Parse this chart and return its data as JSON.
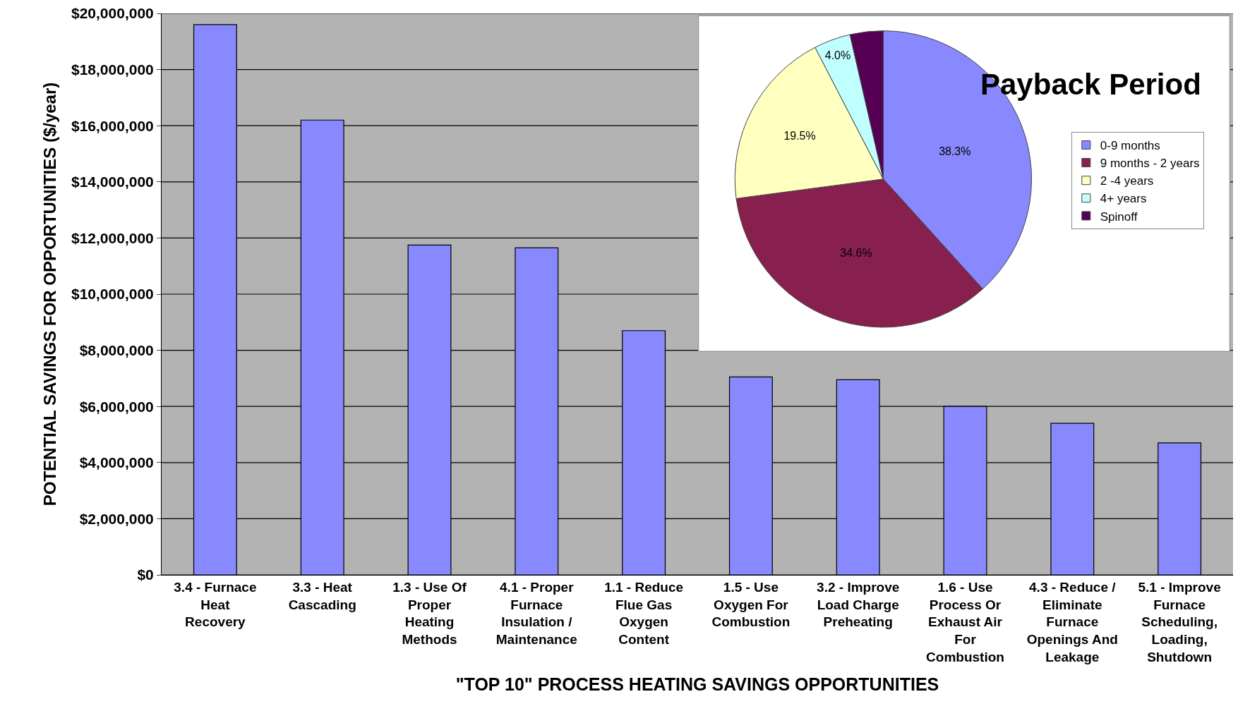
{
  "chart_data": [
    {
      "type": "bar",
      "xlabel": "\"TOP 10\" PROCESS HEATING SAVINGS OPPORTUNITIES",
      "ylabel": "POTENTIAL SAVINGS FOR OPPORTUNITIES ($/year)",
      "categories": [
        "3.4 - Furnace\nHeat\nRecovery",
        "3.3 - Heat\nCascading",
        "1.3 - Use Of\nProper\nHeating\nMethods",
        "4.1 - Proper\nFurnace\nInsulation /\nMaintenance",
        "1.1 - Reduce\nFlue Gas\nOxygen\nContent",
        "1.5 - Use\nOxygen For\nCombustion",
        "3.2 - Improve\nLoad Charge\nPreheating",
        "1.6 - Use\nProcess Or\nExhaust Air\nFor\nCombustion",
        "4.3 - Reduce /\nEliminate\nFurnace\nOpenings And\nLeakage",
        "5.1 - Improve\nFurnace\nScheduling,\nLoading,\nShutdown"
      ],
      "values": [
        19600000,
        16200000,
        11750000,
        11650000,
        8700000,
        7050000,
        6950000,
        6000000,
        5400000,
        4700000
      ],
      "color": "#8888ff",
      "ylim": [
        0,
        20000000
      ],
      "yticks": [
        {
          "value": 0,
          "label": "$0"
        },
        {
          "value": 2000000,
          "label": "$2,000,000"
        },
        {
          "value": 4000000,
          "label": "$4,000,000"
        },
        {
          "value": 6000000,
          "label": "$6,000,000"
        },
        {
          "value": 8000000,
          "label": "$8,000,000"
        },
        {
          "value": 10000000,
          "label": "$10,000,000"
        },
        {
          "value": 12000000,
          "label": "$12,000,000"
        },
        {
          "value": 14000000,
          "label": "$14,000,000"
        },
        {
          "value": 16000000,
          "label": "$16,000,000"
        },
        {
          "value": 18000000,
          "label": "$18,000,000"
        },
        {
          "value": 20000000,
          "label": "$20,000,000"
        }
      ],
      "grid": "y",
      "legend": false
    },
    {
      "type": "pie",
      "title": "Payback Period",
      "categories": [
        "0-9 months",
        "9 months - 2 years",
        "2 -4 years",
        "4+ years",
        "Spinoff"
      ],
      "values": [
        38.3,
        34.6,
        19.5,
        4.0,
        3.6
      ],
      "value_labels": [
        "38.3%",
        "34.6%",
        "19.5%",
        "4.0%",
        null
      ],
      "colors": [
        "#8888ff",
        "#88204f",
        "#ffffc0",
        "#c0ffff",
        "#550055"
      ],
      "legend": "right"
    }
  ]
}
